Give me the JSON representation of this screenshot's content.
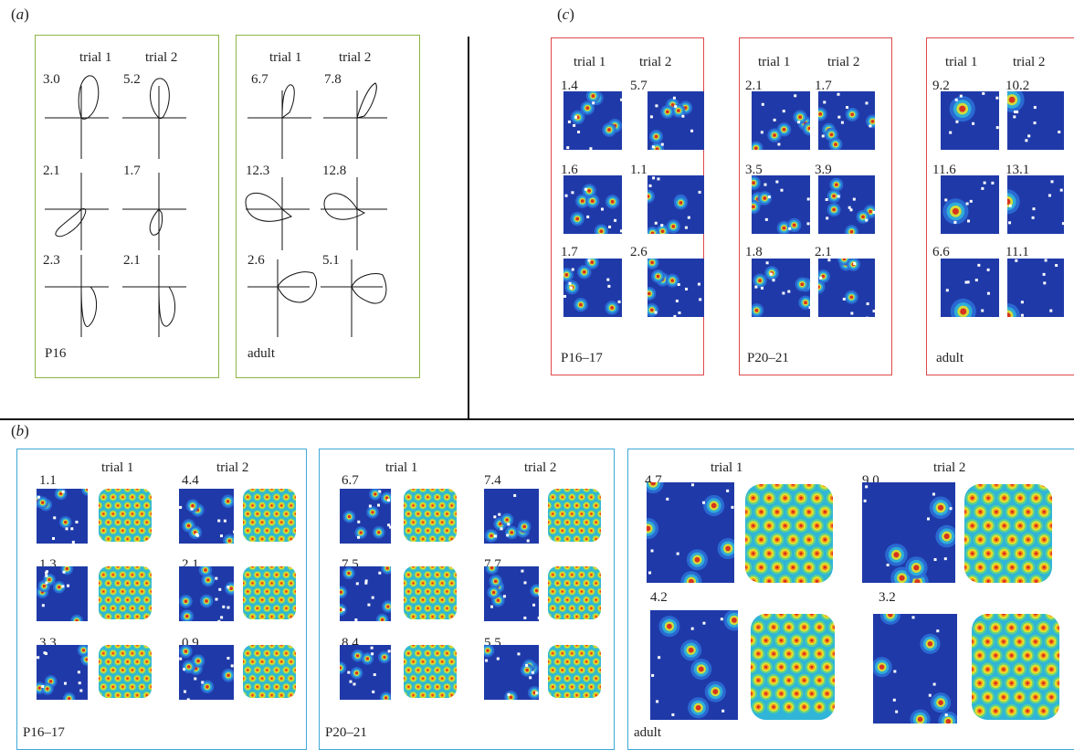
{
  "panels": {
    "a": {
      "label": "a",
      "colors": {
        "border": "#8db547"
      },
      "groups": [
        {
          "name": "P16",
          "trial_headers": [
            "trial 1",
            "trial 2"
          ],
          "rows": [
            [
              "3.0",
              "5.2"
            ],
            [
              "2.1",
              "1.7"
            ],
            [
              "2.3",
              "2.1"
            ]
          ]
        },
        {
          "name": "adult",
          "trial_headers": [
            "trial 1",
            "trial 2"
          ],
          "rows": [
            [
              "6.7",
              "7.8"
            ],
            [
              "12.3",
              "12.8"
            ],
            [
              "2.6",
              "5.1"
            ]
          ]
        }
      ]
    },
    "b": {
      "label": "b",
      "colors": {
        "border": "#3fa9d8"
      },
      "groups": [
        {
          "name": "P16–17",
          "trial_headers": [
            "trial 1",
            "trial 2"
          ],
          "rows": [
            [
              "1.1",
              "4.4"
            ],
            [
              "1.3",
              "2.1"
            ],
            [
              "3.3",
              "0.9"
            ]
          ]
        },
        {
          "name": "P20–21",
          "trial_headers": [
            "trial 1",
            "trial 2"
          ],
          "rows": [
            [
              "6.7",
              "7.4"
            ],
            [
              "7.5",
              "7.7"
            ],
            [
              "8.4",
              "5.5"
            ]
          ]
        },
        {
          "name": "adult",
          "trial_headers": [
            "trial 1",
            "trial 2"
          ],
          "rows": [
            [
              "4.7",
              "9.0"
            ],
            [
              "4.2",
              "3.2"
            ]
          ]
        }
      ]
    },
    "c": {
      "label": "c",
      "colors": {
        "border": "#e0484a"
      },
      "groups": [
        {
          "name": "P16–17",
          "trial_headers": [
            "trial 1",
            "trial 2"
          ],
          "rows": [
            [
              "1.4",
              "5.7"
            ],
            [
              "1.6",
              "1.1"
            ],
            [
              "1.7",
              "2.6"
            ]
          ]
        },
        {
          "name": "P20–21",
          "trial_headers": [
            "trial 1",
            "trial 2"
          ],
          "rows": [
            [
              "2.1",
              "1.7"
            ],
            [
              "3.5",
              "3.9"
            ],
            [
              "1.8",
              "2.1"
            ]
          ]
        },
        {
          "name": "adult",
          "trial_headers": [
            "trial 1",
            "trial 2"
          ],
          "rows": [
            [
              "9.2",
              "10.2"
            ],
            [
              "11.6",
              "13.1"
            ],
            [
              "6.6",
              "11.1"
            ]
          ]
        }
      ]
    }
  },
  "colormap": [
    "#1f3aa8",
    "#2b6fd6",
    "#30b5d8",
    "#5fd08a",
    "#e6e12a",
    "#f08a1c",
    "#d8201c"
  ]
}
